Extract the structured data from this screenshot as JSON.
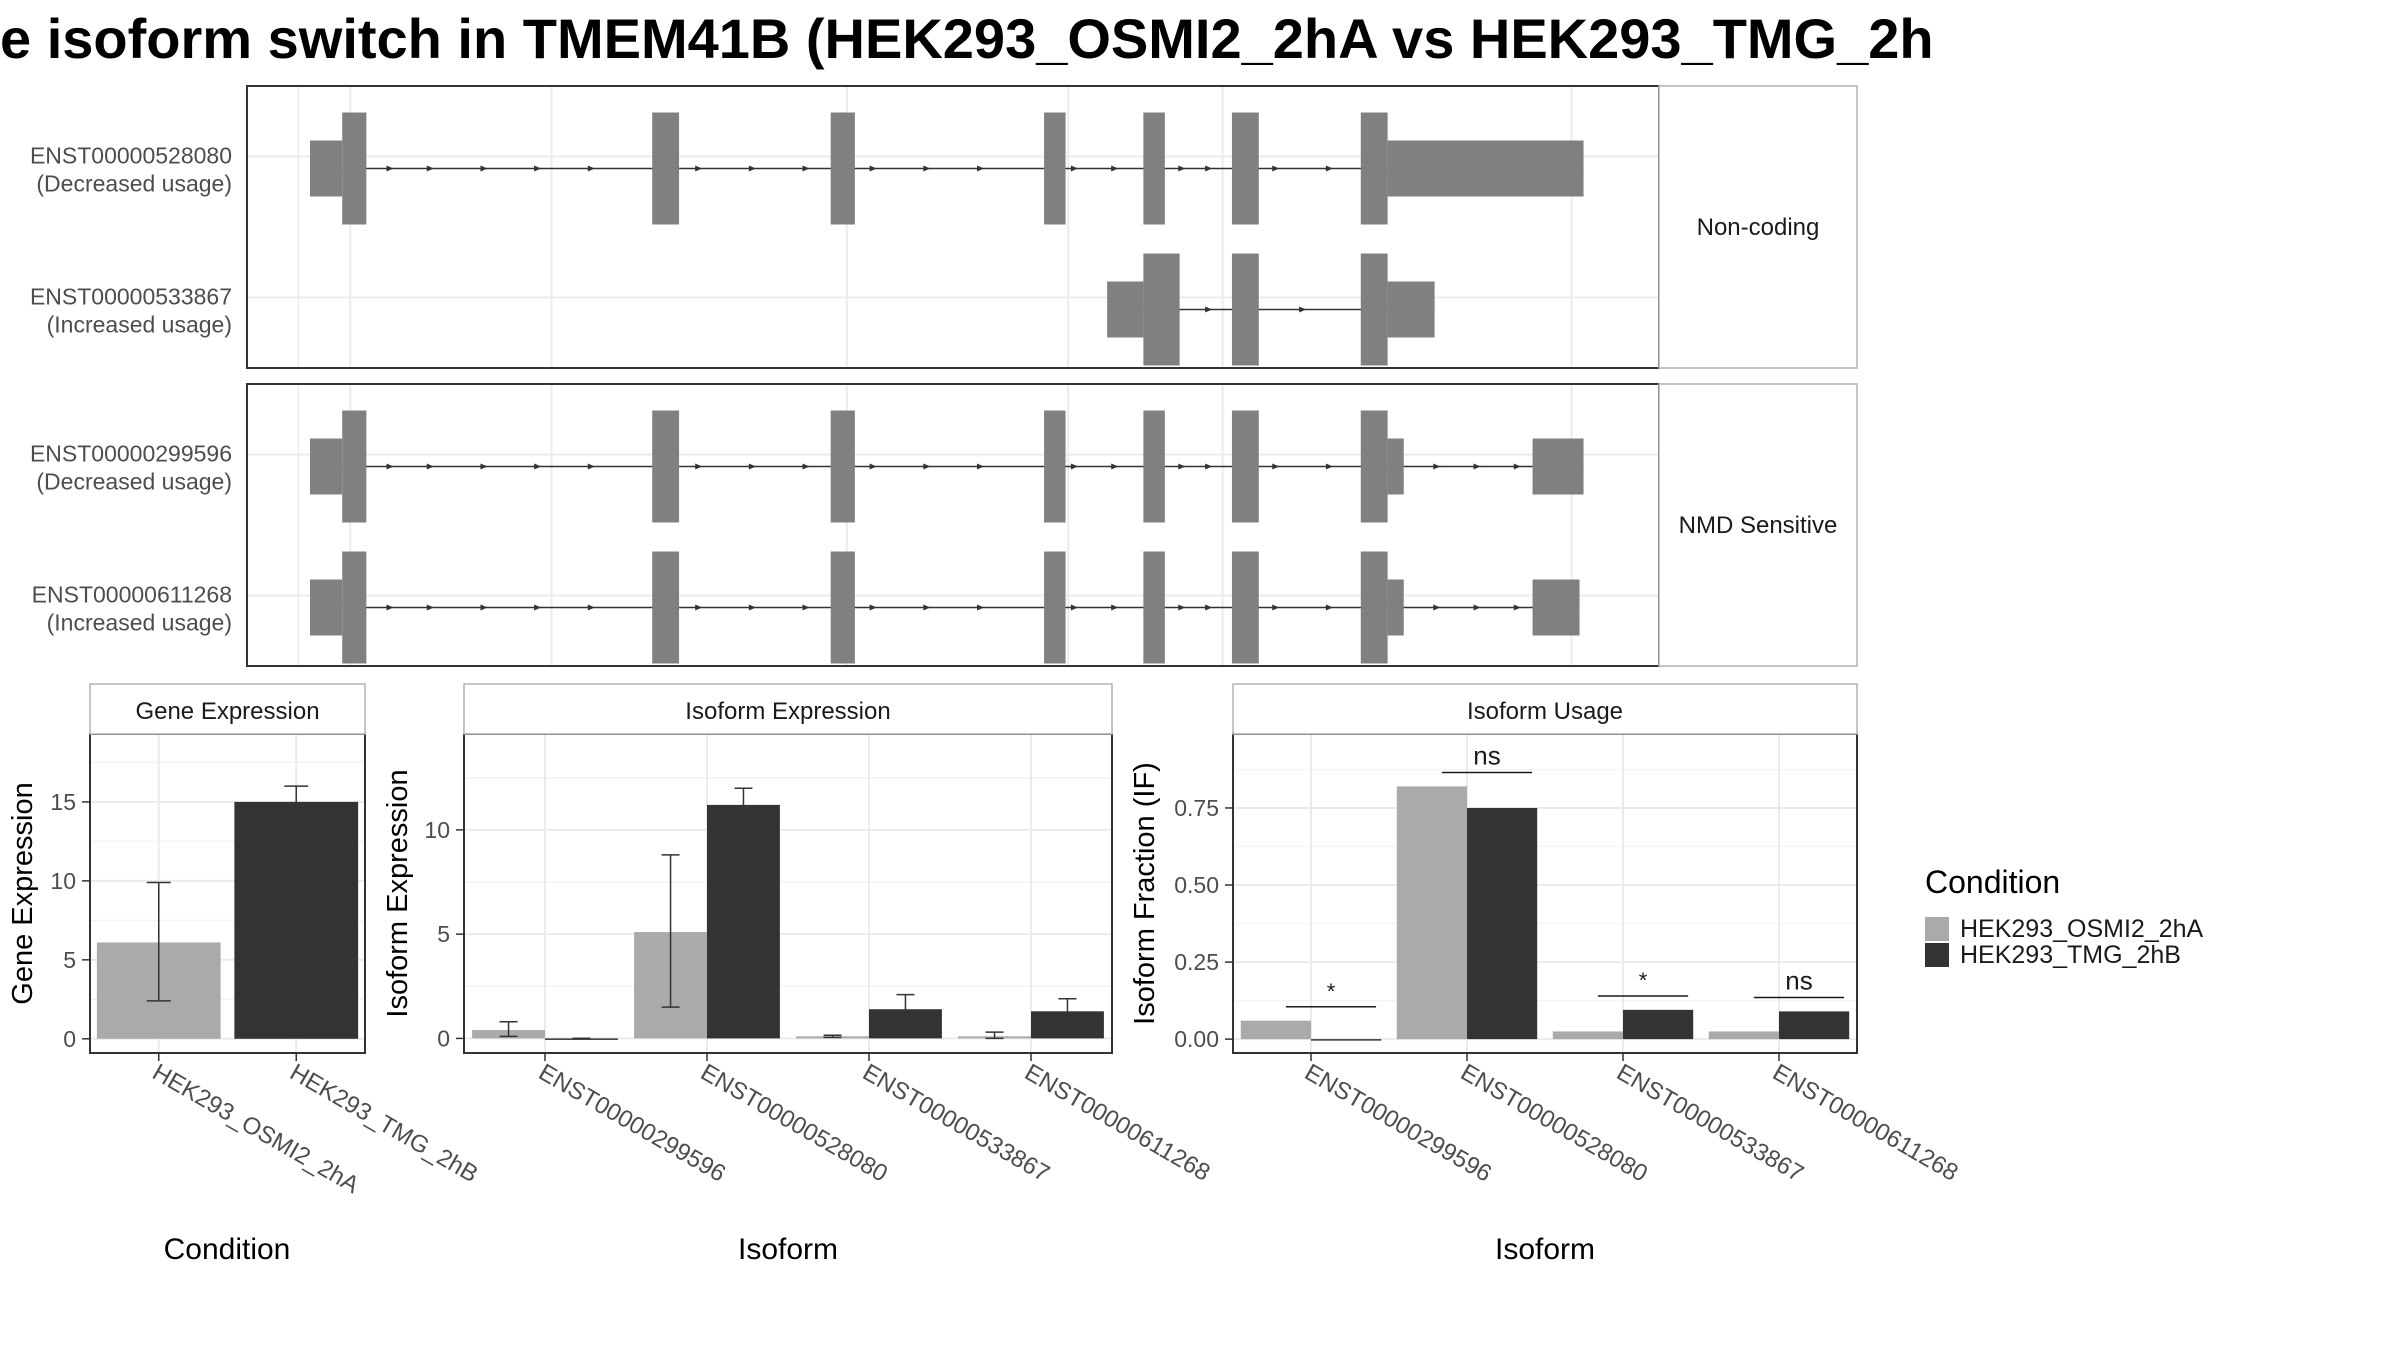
{
  "title": "e isoform switch in TMEM41B (HEK293_OSMI2_2hA vs HEK293_TMG_2h",
  "colors": {
    "exon": "#808080",
    "cond1": "#aaaaaa",
    "cond2": "#333333",
    "grid": "#ebebeb",
    "panel_border": "#333333",
    "strip_border": "#b3b3b3"
  },
  "structure": {
    "groups": [
      {
        "label": "Non-coding",
        "transcripts": [
          {
            "id": "ENST00000528080",
            "usage": "(Decreased usage)",
            "exons": [
              [
                0.0,
                0.024,
                "utr"
              ],
              [
                0.024,
                0.042,
                "cds"
              ],
              [
                0.255,
                0.275,
                "cds"
              ],
              [
                0.388,
                0.406,
                "cds"
              ],
              [
                0.547,
                0.563,
                "cds"
              ],
              [
                0.621,
                0.637,
                "cds"
              ],
              [
                0.687,
                0.707,
                "cds"
              ],
              [
                0.783,
                0.803,
                "cds"
              ],
              [
                0.803,
                0.949,
                "utr"
              ]
            ],
            "arrows": [
              0.06,
              0.09,
              0.13,
              0.17,
              0.21,
              0.29,
              0.33,
              0.37,
              0.42,
              0.46,
              0.5,
              0.57,
              0.6,
              0.65,
              0.67,
              0.72,
              0.76
            ]
          },
          {
            "id": "ENST00000533867",
            "usage": "(Increased usage)",
            "exons": [
              [
                0.594,
                0.621,
                "utr"
              ],
              [
                0.621,
                0.648,
                "cds"
              ],
              [
                0.687,
                0.707,
                "cds"
              ],
              [
                0.783,
                0.803,
                "cds"
              ],
              [
                0.803,
                0.838,
                "utr"
              ]
            ],
            "arrows": [
              0.67,
              0.74
            ]
          }
        ]
      },
      {
        "label": "NMD Sensitive",
        "transcripts": [
          {
            "id": "ENST00000299596",
            "usage": "(Decreased usage)",
            "exons": [
              [
                0.0,
                0.024,
                "utr"
              ],
              [
                0.024,
                0.042,
                "cds"
              ],
              [
                0.255,
                0.275,
                "cds"
              ],
              [
                0.388,
                0.406,
                "cds"
              ],
              [
                0.547,
                0.563,
                "cds"
              ],
              [
                0.621,
                0.637,
                "cds"
              ],
              [
                0.687,
                0.707,
                "cds"
              ],
              [
                0.783,
                0.803,
                "cds"
              ],
              [
                0.803,
                0.815,
                "utr"
              ],
              [
                0.911,
                0.949,
                "utr"
              ]
            ],
            "arrows": [
              0.06,
              0.09,
              0.13,
              0.17,
              0.21,
              0.29,
              0.33,
              0.37,
              0.42,
              0.46,
              0.5,
              0.57,
              0.6,
              0.65,
              0.67,
              0.72,
              0.76,
              0.84,
              0.87,
              0.9
            ]
          },
          {
            "id": "ENST00000611268",
            "usage": "(Increased usage)",
            "exons": [
              [
                0.0,
                0.024,
                "utr"
              ],
              [
                0.024,
                0.042,
                "cds"
              ],
              [
                0.255,
                0.275,
                "cds"
              ],
              [
                0.388,
                0.406,
                "cds"
              ],
              [
                0.547,
                0.563,
                "cds"
              ],
              [
                0.621,
                0.637,
                "cds"
              ],
              [
                0.687,
                0.707,
                "cds"
              ],
              [
                0.783,
                0.803,
                "cds"
              ],
              [
                0.803,
                0.815,
                "utr"
              ],
              [
                0.911,
                0.946,
                "utr"
              ]
            ],
            "arrows": [
              0.06,
              0.09,
              0.13,
              0.17,
              0.21,
              0.29,
              0.33,
              0.37,
              0.42,
              0.46,
              0.5,
              0.57,
              0.6,
              0.65,
              0.67,
              0.72,
              0.76,
              0.84,
              0.87,
              0.9
            ]
          }
        ]
      }
    ]
  },
  "chart_data": [
    {
      "type": "bar",
      "title": "Gene Expression",
      "xlabel": "Condition",
      "ylabel": "Gene Expression",
      "ylim": [
        -0.9,
        19.3
      ],
      "yticks": [
        0,
        5,
        10,
        15
      ],
      "categories": [
        "HEK293_OSMI2_2hA",
        "HEK293_TMG_2hB"
      ],
      "series": [
        {
          "name": "HEK293_OSMI2_2hA",
          "values": [
            6.1,
            null
          ],
          "err_low": [
            2.4,
            null
          ],
          "err_high": [
            9.9,
            null
          ]
        },
        {
          "name": "HEK293_TMG_2hB",
          "values": [
            null,
            15.0
          ],
          "err_low": [
            null,
            14.1
          ],
          "err_high": [
            null,
            16.0
          ]
        }
      ],
      "grid": true
    },
    {
      "type": "bar",
      "title": "Isoform Expression",
      "xlabel": "Isoform",
      "ylabel": "Isoform Expression",
      "ylim": [
        -0.7,
        14.6
      ],
      "yticks": [
        0,
        5,
        10
      ],
      "categories": [
        "ENST00000299596",
        "ENST00000528080",
        "ENST00000533867",
        "ENST00000611268"
      ],
      "series": [
        {
          "name": "HEK293_OSMI2_2hA",
          "values": [
            0.4,
            5.1,
            0.1,
            0.1
          ],
          "err_low": [
            0.1,
            1.5,
            0.05,
            0.0
          ],
          "err_high": [
            0.8,
            8.8,
            0.15,
            0.3
          ]
        },
        {
          "name": "HEK293_TMG_2hB",
          "values": [
            0.0,
            11.2,
            1.4,
            1.3
          ],
          "err_low": [
            0.0,
            10.4,
            0.8,
            0.8
          ],
          "err_high": [
            0.0,
            12.0,
            2.1,
            1.9
          ]
        }
      ],
      "grid": true
    },
    {
      "type": "bar",
      "title": "Isoform Usage",
      "xlabel": "Isoform",
      "ylabel": "Isoform Fraction (IF)",
      "ylim": [
        -0.045,
        0.99
      ],
      "yticks": [
        0.0,
        0.25,
        0.5,
        0.75
      ],
      "ytick_labels": [
        "0.00",
        "0.25",
        "0.50",
        "0.75"
      ],
      "categories": [
        "ENST00000299596",
        "ENST00000528080",
        "ENST00000533867",
        "ENST00000611268"
      ],
      "series": [
        {
          "name": "HEK293_OSMI2_2hA",
          "values": [
            0.06,
            0.82,
            0.025,
            0.025
          ]
        },
        {
          "name": "HEK293_TMG_2hB",
          "values": [
            0.0,
            0.75,
            0.095,
            0.09
          ]
        }
      ],
      "significance": [
        {
          "label": "*",
          "y": 0.105
        },
        {
          "label": "ns",
          "y": 0.865
        },
        {
          "label": "*",
          "y": 0.14
        },
        {
          "label": "ns",
          "y": 0.135
        }
      ],
      "grid": true
    }
  ],
  "legend": {
    "title": "Condition",
    "entries": [
      {
        "label": "HEK293_OSMI2_2hA",
        "color": "#aaaaaa"
      },
      {
        "label": "HEK293_TMG_2hB",
        "color": "#333333"
      }
    ],
    "position": "right"
  }
}
